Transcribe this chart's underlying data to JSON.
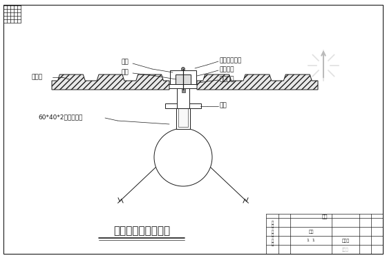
{
  "bg_color": "#ffffff",
  "line_color": "#1a1a1a",
  "title": "彩钢板顺坡连接节点",
  "labels": {
    "caigang": "彩钢板",
    "gangban": "钢板",
    "liuding": "铆钉",
    "zikong": "自攻自钻螺钉",
    "mifeng": "密封硅胶",
    "neichen": "内衬钢板",
    "zhituo": "支托",
    "juxing": "60*40*2矩形檩条管"
  },
  "figsize": [
    5.6,
    3.9
  ],
  "dpi": 100
}
